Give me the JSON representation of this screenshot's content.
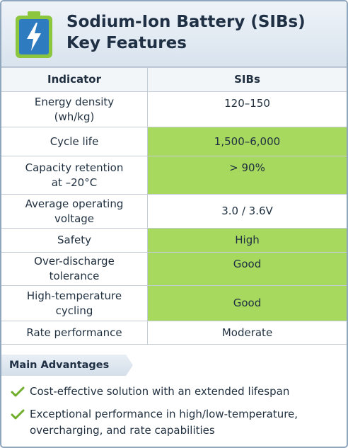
{
  "header": {
    "title_line1": "Sodium-Ion Battery (SIBs)",
    "title_line2": "Key Features",
    "icon": "battery-charging-icon",
    "accent_color": "#8cc63f"
  },
  "table": {
    "columns": [
      "Indicator",
      "SIBs"
    ],
    "rows": [
      {
        "indicator_lines": [
          "Energy density",
          "(wh/kg)"
        ],
        "value": "120–150",
        "highlight": false
      },
      {
        "indicator_lines": [
          "Cycle life"
        ],
        "value": "1,500–6,000",
        "highlight": true
      },
      {
        "indicator_lines": [
          "Capacity retention",
          "at –20°C"
        ],
        "value": "> 90%",
        "highlight": true
      },
      {
        "indicator_lines": [
          "Average operating",
          "voltage"
        ],
        "value": "3.0 / 3.6V",
        "highlight": false
      },
      {
        "indicator_lines": [
          "Safety"
        ],
        "value": "High",
        "highlight": true
      },
      {
        "indicator_lines": [
          "Over-discharge",
          "tolerance"
        ],
        "value": "Good",
        "highlight": true
      },
      {
        "indicator_lines": [
          "High-temperature",
          "cycling"
        ],
        "value": "Good",
        "highlight": true
      },
      {
        "indicator_lines": [
          "Rate performance"
        ],
        "value": "Moderate",
        "highlight": false
      }
    ],
    "highlight_color": "#a6d95e"
  },
  "advantages": {
    "title": "Main Advantages",
    "items": [
      {
        "line1": "Cost-effective solution with an extended lifespan",
        "line2": ""
      },
      {
        "line1": "Exceptional performance in high/low-temperature,",
        "line2": "overcharging, and rate capabilities"
      }
    ],
    "check_icon": "check-icon"
  }
}
